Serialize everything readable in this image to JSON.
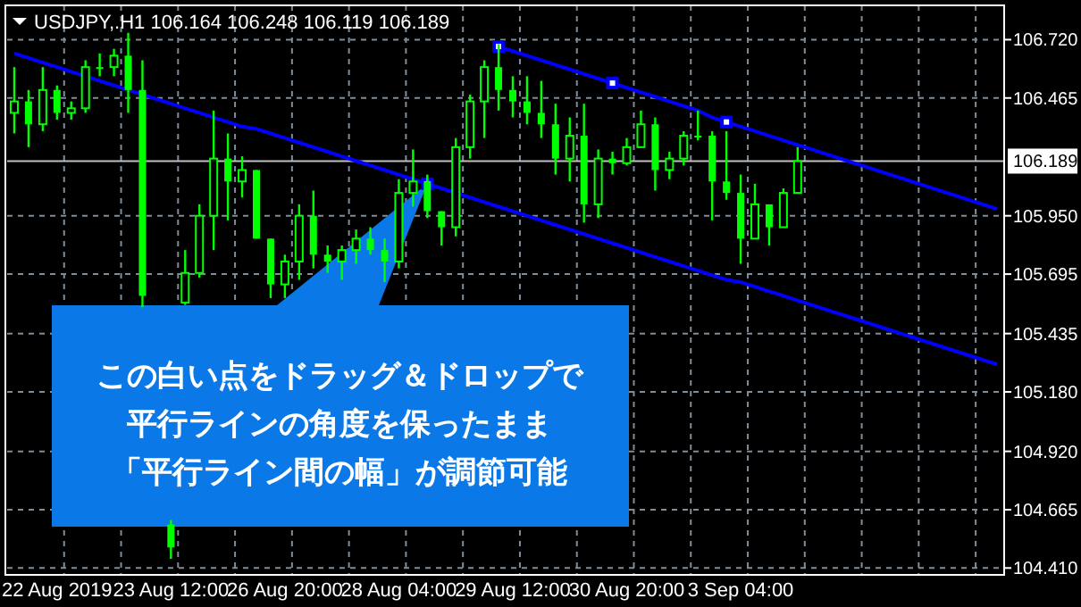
{
  "chart_data": {
    "type": "candlestick",
    "title": "USDJPY,.H1  106.164 106.248 106.119 106.189",
    "color": "#00ff00",
    "categories": [
      null,
      null,
      null,
      "22 Aug 2019",
      null,
      null,
      null,
      null,
      null,
      null,
      null,
      "23 Aug 12:00",
      null,
      null,
      null,
      null,
      null,
      null,
      null,
      "26 Aug 20:00",
      null,
      null,
      null,
      null,
      null,
      null,
      null,
      "28 Aug 04:00",
      null,
      null,
      null,
      null,
      null,
      null,
      null,
      "29 Aug 12:00",
      null,
      null,
      null,
      null,
      null,
      null,
      null,
      "30 Aug 20:00",
      null,
      null,
      null,
      null,
      null,
      null,
      null,
      "3 Sep 04:00",
      null,
      null,
      null,
      null,
      null,
      null,
      null,
      null,
      null,
      null,
      null,
      null,
      null,
      null,
      null,
      null,
      null,
      null
    ],
    "ohlc": [
      [
        106.4,
        106.6,
        106.31,
        106.45
      ],
      [
        106.45,
        106.5,
        106.25,
        106.35
      ],
      [
        106.35,
        106.6,
        106.32,
        106.5
      ],
      [
        106.5,
        106.52,
        106.37,
        106.4
      ],
      [
        106.4,
        106.45,
        106.37,
        106.42
      ],
      [
        106.42,
        106.63,
        106.4,
        106.6
      ],
      [
        106.6,
        106.66,
        106.56,
        106.6
      ],
      [
        106.6,
        106.68,
        106.56,
        106.65
      ],
      [
        106.65,
        106.75,
        106.4,
        106.5
      ],
      [
        106.5,
        106.63,
        105.55,
        105.6
      ],
      null,
      [
        104.6,
        104.62,
        104.45,
        104.5
      ],
      [
        105.57,
        105.8,
        105.56,
        105.7
      ],
      [
        105.7,
        106.0,
        105.68,
        105.95
      ],
      [
        105.95,
        106.41,
        105.8,
        106.2
      ],
      [
        106.2,
        106.31,
        105.93,
        106.1
      ],
      [
        106.1,
        106.21,
        106.03,
        106.15
      ],
      [
        106.15,
        106.15,
        105.85,
        105.85
      ],
      [
        105.85,
        105.85,
        105.59,
        105.65
      ],
      [
        105.65,
        105.78,
        105.59,
        105.75
      ],
      [
        105.75,
        106.0,
        105.67,
        105.95
      ],
      [
        105.95,
        106.06,
        105.72,
        105.78
      ],
      [
        105.78,
        105.82,
        105.7,
        105.75
      ],
      [
        105.75,
        105.82,
        105.67,
        105.8
      ],
      [
        105.8,
        105.89,
        105.74,
        105.85
      ],
      [
        105.85,
        105.9,
        105.78,
        105.8
      ],
      [
        105.8,
        105.85,
        105.66,
        105.75
      ],
      [
        105.75,
        106.11,
        105.72,
        106.05
      ],
      [
        106.05,
        106.24,
        105.99,
        106.1
      ],
      [
        106.1,
        106.13,
        105.94,
        105.97
      ],
      [
        105.97,
        105.97,
        105.82,
        105.9
      ],
      [
        105.9,
        106.29,
        105.86,
        106.25
      ],
      [
        106.25,
        106.48,
        106.2,
        106.45
      ],
      [
        106.45,
        106.63,
        106.29,
        106.6
      ],
      [
        106.6,
        106.7,
        106.41,
        106.5
      ],
      [
        106.5,
        106.56,
        106.38,
        106.45
      ],
      [
        106.45,
        106.56,
        106.35,
        106.4
      ],
      [
        106.4,
        106.54,
        106.29,
        106.35
      ],
      [
        106.35,
        106.44,
        106.13,
        106.2
      ],
      [
        106.2,
        106.38,
        106.1,
        106.3
      ],
      [
        106.3,
        106.44,
        105.92,
        106.0
      ],
      [
        106.0,
        106.24,
        105.94,
        106.2
      ],
      [
        106.2,
        106.23,
        106.13,
        106.18
      ],
      [
        106.18,
        106.29,
        106.17,
        106.25
      ],
      [
        106.25,
        106.41,
        106.25,
        106.35
      ],
      [
        106.35,
        106.38,
        106.06,
        106.15
      ],
      [
        106.15,
        106.23,
        106.11,
        106.2
      ],
      [
        106.2,
        106.32,
        106.17,
        106.3
      ],
      [
        106.3,
        106.41,
        106.28,
        106.3
      ],
      [
        106.3,
        106.32,
        105.93,
        106.1
      ],
      [
        106.1,
        106.32,
        106.02,
        106.05
      ],
      [
        106.05,
        106.13,
        105.74,
        105.85
      ],
      [
        105.85,
        106.09,
        105.85,
        106.0
      ],
      [
        106.0,
        106.0,
        105.82,
        105.9
      ],
      [
        105.9,
        106.07,
        105.9,
        106.05
      ],
      [
        106.05,
        106.25,
        106.05,
        106.189
      ],
      null,
      null,
      null,
      null,
      null,
      null,
      null,
      null,
      null,
      null,
      null,
      null,
      null,
      null
    ],
    "series": [
      {
        "type": "line",
        "color": "#0000ff",
        "values": [
          106.66,
          106.64,
          106.62,
          106.6,
          106.58,
          106.56,
          106.54,
          106.52,
          106.5,
          106.48,
          106.46,
          106.44,
          106.42,
          106.4,
          106.38,
          106.36,
          106.34,
          106.33,
          106.31,
          106.29,
          106.27,
          106.25,
          106.23,
          106.21,
          106.19,
          106.17,
          106.15,
          106.13,
          106.11,
          106.09,
          106.07,
          106.05,
          106.03,
          106.01,
          105.99,
          105.97,
          105.95,
          105.93,
          105.91,
          105.89,
          105.87,
          105.85,
          105.83,
          105.81,
          105.79,
          105.77,
          105.75,
          105.73,
          105.71,
          105.69,
          105.67,
          105.66,
          105.64,
          105.62,
          105.6,
          105.58,
          105.56,
          105.54,
          105.52,
          105.5,
          105.48,
          105.46,
          105.44,
          105.42,
          105.4,
          105.38,
          105.36,
          105.34,
          105.32,
          105.3
        ]
      },
      {
        "type": "line",
        "color": "#0000ff",
        "values": [
          null,
          null,
          null,
          null,
          null,
          null,
          null,
          null,
          null,
          null,
          null,
          null,
          null,
          null,
          null,
          null,
          null,
          null,
          null,
          null,
          null,
          null,
          null,
          null,
          null,
          null,
          null,
          null,
          null,
          null,
          null,
          null,
          null,
          null,
          106.69,
          106.67,
          106.65,
          106.63,
          106.61,
          106.59,
          106.57,
          106.55,
          106.53,
          106.51,
          106.49,
          106.47,
          106.45,
          106.43,
          106.41,
          106.38,
          106.36,
          106.34,
          106.32,
          106.3,
          106.28,
          106.26,
          106.24,
          106.22,
          106.2,
          106.18,
          106.16,
          106.14,
          106.12,
          106.1,
          106.08,
          106.06,
          106.04,
          106.02,
          106.0,
          105.98
        ]
      }
    ],
    "ylim": [
      104.38,
      106.87
    ],
    "yticks": [
      {
        "value": 104.41,
        "label": "104.410"
      },
      104.665,
      {
        "value": 104.92,
        "label": "104.920"
      },
      {
        "value": 105.18,
        "label": "105.180"
      },
      105.435,
      105.695,
      {
        "value": 105.95,
        "label": "105.950"
      },
      106.465,
      {
        "value": 106.72,
        "label": "106.720"
      }
    ],
    "ref_lines": [
      {
        "axis": "y",
        "value": 106.189,
        "label": "106.189",
        "color": "#c0c0c0"
      }
    ],
    "annotations": [
      "この白い点をドラッグ＆ドロップで",
      "平行ラインの角度を保ったまま",
      "「平行ライン間の幅」が調節可能"
    ],
    "grid": true
  }
}
